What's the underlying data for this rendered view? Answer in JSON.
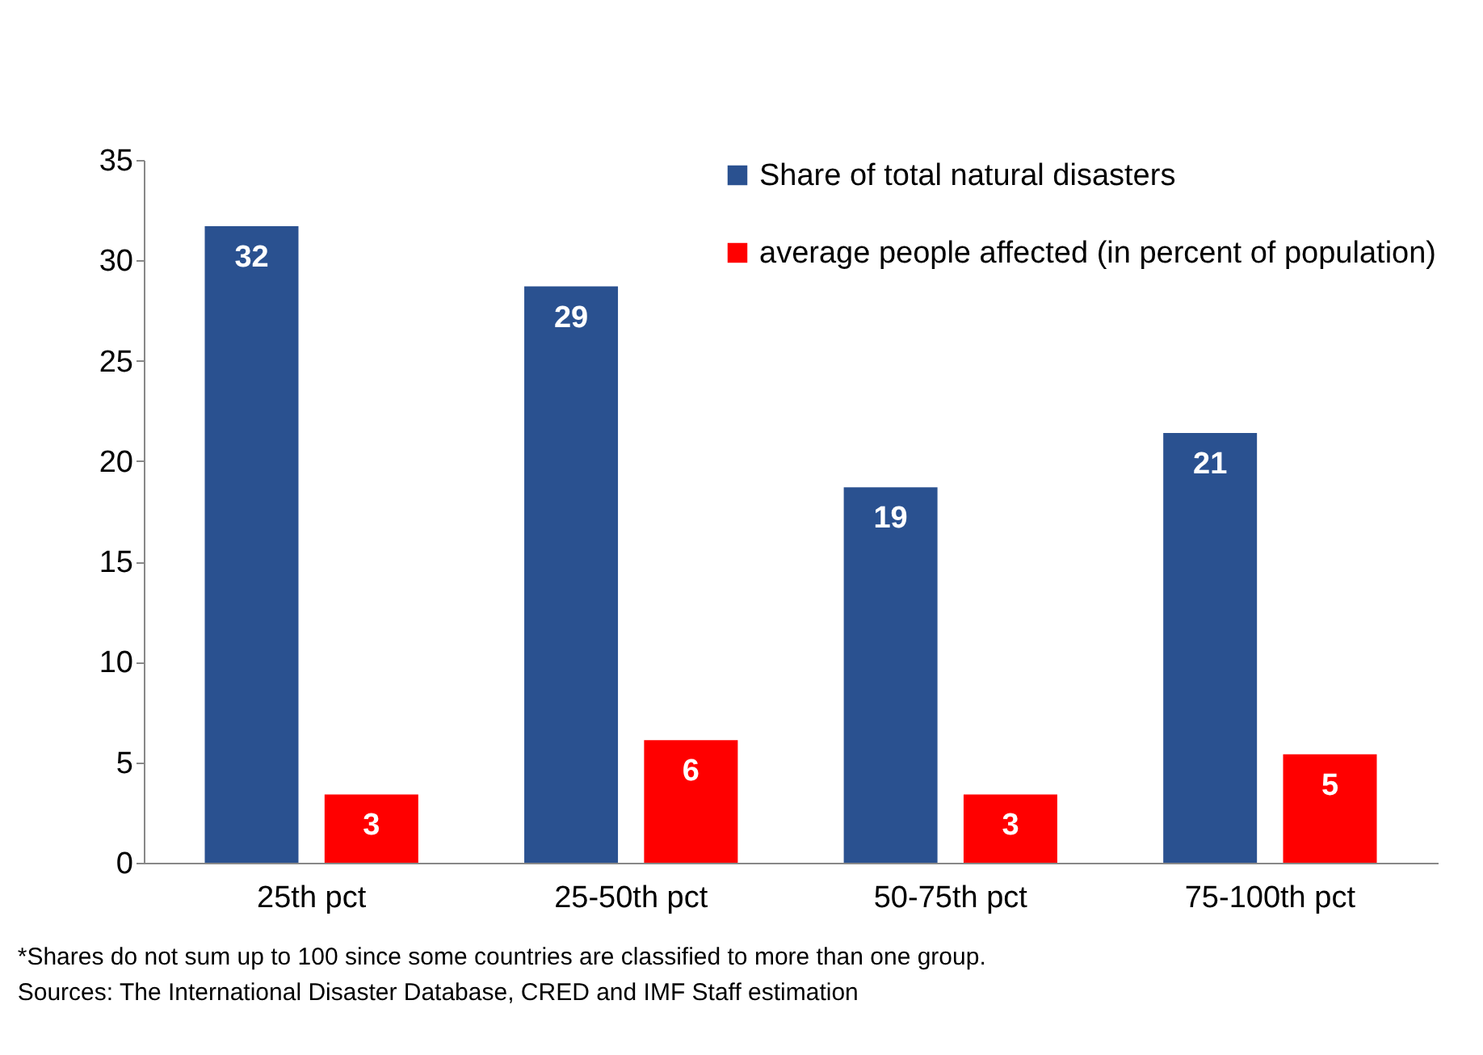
{
  "chart_data": {
    "type": "bar",
    "categories": [
      "25th pct",
      "25-50th pct",
      "50-75th pct",
      "75-100th pct"
    ],
    "series": [
      {
        "name": "Share of total natural disasters",
        "color": "#2a5190",
        "values": [
          31.7,
          28.7,
          18.7,
          21.4
        ],
        "value_labels": [
          "32",
          "29",
          "19",
          "21"
        ]
      },
      {
        "name": "average people affected (in percent of population)",
        "color": "#ff0000",
        "values": [
          3.4,
          6.1,
          3.4,
          5.4
        ],
        "value_labels": [
          "3",
          "6",
          "3",
          "5"
        ]
      }
    ],
    "ylim": [
      0,
      35
    ],
    "yticks": [
      0,
      5,
      10,
      15,
      20,
      25,
      30,
      35
    ],
    "grid": false,
    "legend": "top right",
    "annotations": [
      "*Shares do not sum up to 100 since some countries are classified to more than one group.",
      "Sources: The International Disaster Database, CRED and IMF Staff estimation"
    ]
  }
}
